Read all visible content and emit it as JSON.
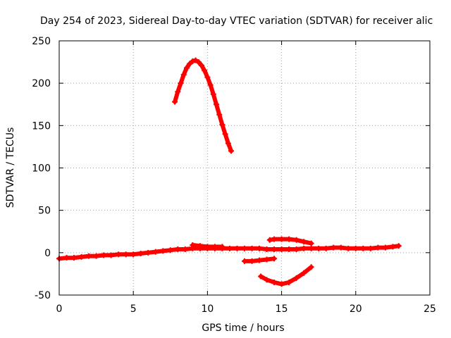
{
  "chart_data": {
    "type": "scatter",
    "title": "Day 254 of 2023, Sidereal Day-to-day VTEC variation (SDTVAR) for receiver alic",
    "xlabel": "GPS time / hours",
    "ylabel": "SDTVAR / TECUs",
    "xlim": [
      0,
      25
    ],
    "ylim": [
      -50,
      250
    ],
    "xticks": [
      "0",
      "5",
      "10",
      "15",
      "20",
      "25"
    ],
    "yticks": [
      "-50",
      "0",
      "50",
      "100",
      "150",
      "200",
      "250"
    ],
    "grid": true,
    "marker": "plus",
    "series_color": "#ff0000",
    "series": [
      {
        "x": [
          0,
          0.5,
          1,
          1.5,
          2,
          2.5,
          3,
          3.5,
          4,
          4.5,
          5,
          5.5,
          6,
          6.5,
          7,
          7.5,
          8,
          8.5,
          9,
          9.5,
          10,
          10.5,
          11,
          11.5,
          12,
          12.5,
          13,
          13.5,
          14,
          14.5,
          15,
          15.5,
          16,
          16.5,
          17,
          17.5,
          18,
          18.5,
          19,
          19.5,
          20,
          20.5,
          21,
          21.5,
          22,
          22.5,
          22.9
        ],
        "y": [
          -7,
          -6,
          -6,
          -5,
          -4,
          -4,
          -3,
          -3,
          -2,
          -2,
          -2,
          -1,
          0,
          1,
          2,
          3,
          4,
          4,
          5,
          5,
          5,
          5,
          5,
          5,
          5,
          5,
          5,
          5,
          4,
          4,
          4,
          4,
          4,
          5,
          5,
          5,
          5,
          6,
          6,
          5,
          5,
          5,
          5,
          6,
          6,
          7,
          8
        ]
      },
      {
        "x": [
          7.8,
          8.0,
          8.2,
          8.4,
          8.6,
          8.8,
          9.0,
          9.2,
          9.4,
          9.6,
          9.8,
          10.0,
          10.2,
          10.4,
          10.6,
          10.8,
          11.0,
          11.2,
          11.4,
          11.6
        ],
        "y": [
          178,
          190,
          200,
          210,
          218,
          223,
          226,
          227,
          225,
          221,
          215,
          207,
          198,
          187,
          175,
          163,
          151,
          140,
          129,
          120
        ]
      },
      {
        "x": [
          9,
          9.5,
          10,
          10.5,
          11
        ],
        "y": [
          9,
          8,
          7,
          7,
          7
        ]
      },
      {
        "x": [
          12.5,
          13,
          13.5,
          14,
          14.5
        ],
        "y": [
          -10,
          -10,
          -9,
          -8,
          -7
        ]
      },
      {
        "x": [
          13.6,
          14,
          14.5,
          15,
          15.5,
          16,
          16.5,
          17
        ],
        "y": [
          -28,
          -32,
          -35,
          -37,
          -35,
          -30,
          -24,
          -17
        ]
      },
      {
        "x": [
          14.2,
          14.5,
          15,
          15.5,
          16,
          16.5,
          17
        ],
        "y": [
          15,
          16,
          16,
          16,
          15,
          13,
          11
        ]
      }
    ]
  }
}
